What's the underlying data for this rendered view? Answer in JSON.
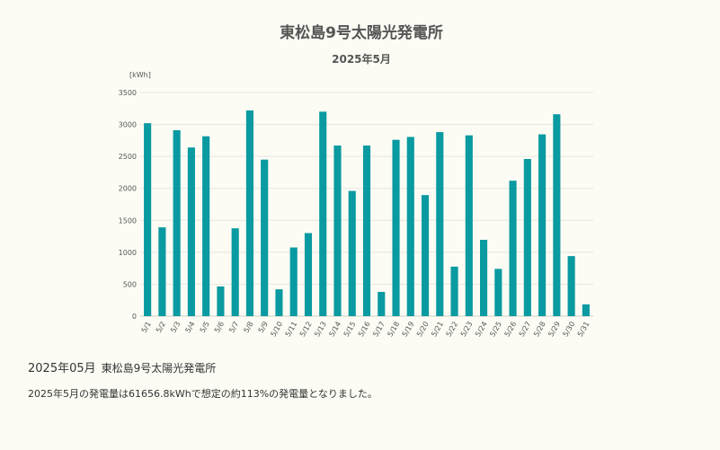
{
  "chart_data": {
    "type": "bar",
    "title": "東松島9号太陽光発電所",
    "subtitle": "2025年5月",
    "ylabel": "[kWh]",
    "xlabel": "",
    "ylim": [
      0,
      3500
    ],
    "yticks": [
      "0",
      "500",
      "1000",
      "1500",
      "2000",
      "2500",
      "3000",
      "3500"
    ],
    "grid": true,
    "legend": "none",
    "bar_color": "#0a9aa1",
    "categories": [
      "5/1",
      "5/2",
      "5/3",
      "5/4",
      "5/5",
      "5/6",
      "5/7",
      "5/8",
      "5/9",
      "5/10",
      "5/11",
      "5/12",
      "5/13",
      "5/14",
      "5/15",
      "5/16",
      "5/17",
      "5/18",
      "5/19",
      "5/20",
      "5/21",
      "5/22",
      "5/23",
      "5/24",
      "5/25",
      "5/26",
      "5/27",
      "5/28",
      "5/29",
      "5/30",
      "5/31"
    ],
    "values": [
      3020,
      1390,
      2910,
      2640,
      2815,
      465,
      1375,
      3220,
      2450,
      420,
      1075,
      1300,
      3200,
      2670,
      1960,
      2670,
      380,
      2760,
      2805,
      1895,
      2880,
      775,
      2830,
      1195,
      740,
      2120,
      2460,
      2845,
      3160,
      940,
      185
    ]
  },
  "summary": {
    "month": "2025年05月",
    "plant": "東松島9号太陽光発電所",
    "text": "2025年5月の発電量は61656.8kWhで想定の約113%の発電量となりました。"
  }
}
